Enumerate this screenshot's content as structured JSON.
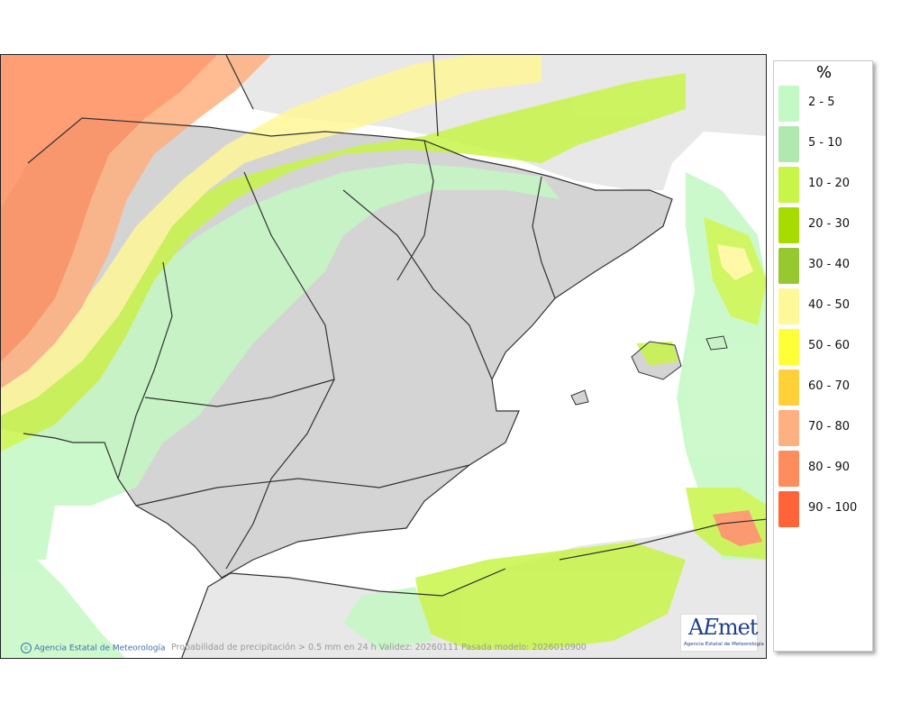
{
  "legend": {
    "unit": "%",
    "bins": [
      {
        "label": "2 - 5",
        "color": "#c4f8c4"
      },
      {
        "label": "5 - 10",
        "color": "#b0e8b0"
      },
      {
        "label": "10 - 20",
        "color": "#c8f548"
      },
      {
        "label": "20 - 30",
        "color": "#a8dc00"
      },
      {
        "label": "30 - 40",
        "color": "#98c830"
      },
      {
        "label": "40 - 50",
        "color": "#fff898"
      },
      {
        "label": "50 - 60",
        "color": "#ffff38"
      },
      {
        "label": "60 - 70",
        "color": "#ffd038"
      },
      {
        "label": "70 - 80",
        "color": "#ffb080"
      },
      {
        "label": "80 - 90",
        "color": "#ff8c5c"
      },
      {
        "label": "90 - 100",
        "color": "#ff6438"
      }
    ]
  },
  "credit": "Agencia Estatal de Meteorología",
  "caption": "Probabilidad de precipitación > 0.5 mm en 24 h Validez: 20260111 Pasada modelo: 2026010900",
  "logo": {
    "mark": "AEmet",
    "subtitle": "Agencia Estatal de Meteorología"
  },
  "colors": {
    "sea": "#ffffff",
    "land": "#d4d4d4",
    "foreign_land": "#e8e8e8",
    "border": "#333333"
  }
}
